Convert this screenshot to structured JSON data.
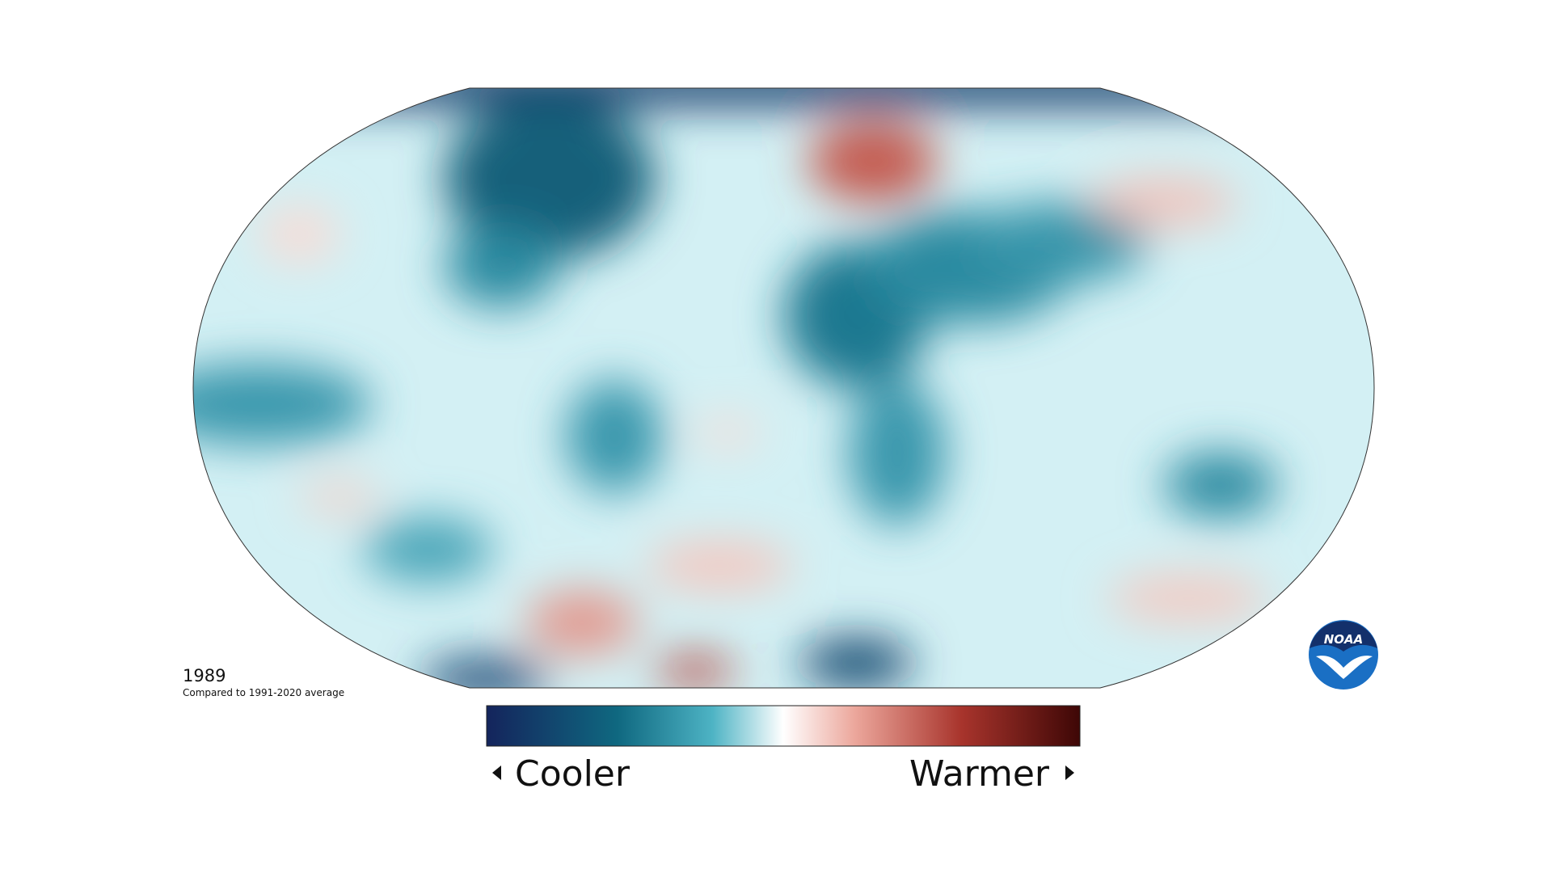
{
  "map": {
    "year": "1989",
    "subtitle": "Compared to 1991-2020 average"
  },
  "legend": {
    "low_label": "Cooler",
    "high_label": "Warmer"
  },
  "logo": {
    "text": "NOAA"
  }
}
